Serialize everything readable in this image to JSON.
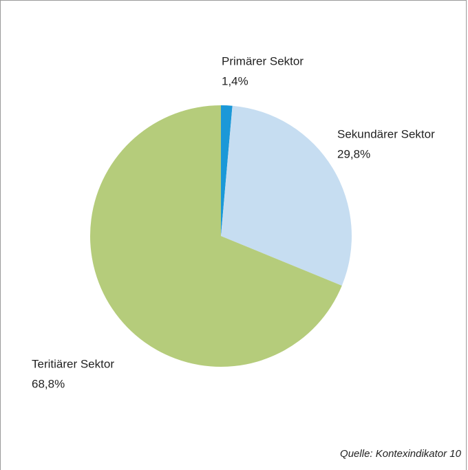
{
  "chart_data": {
    "type": "pie",
    "categories": [
      "Primärer Sektor",
      "Sekundärer Sektor",
      "Teritiärer Sektor"
    ],
    "values": [
      1.4,
      29.8,
      68.8
    ],
    "value_labels": [
      "1,4%",
      "29,8%",
      "68,8%"
    ],
    "colors": [
      "#1b98d8",
      "#c6ddf1",
      "#b5cc7b"
    ],
    "annotation": "Quelle: Kontexindikator 10"
  }
}
